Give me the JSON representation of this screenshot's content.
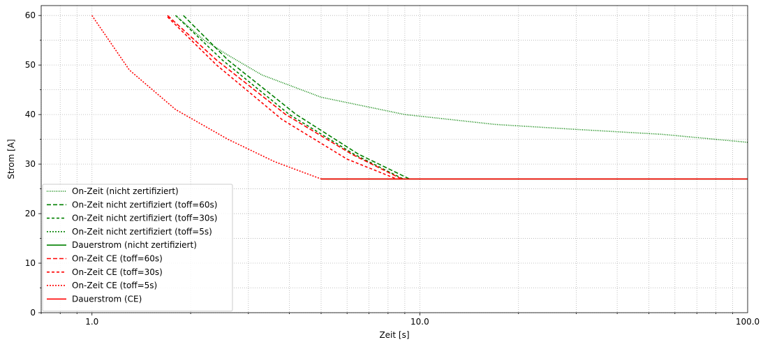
{
  "chart_data": {
    "type": "line",
    "xlabel": "Zeit [s]",
    "ylabel": "Strom [A]",
    "xscale": "log",
    "xlim": [
      0.7,
      100
    ],
    "ylim": [
      0,
      62
    ],
    "grid": true,
    "legend_position": "lower-left",
    "x_ticks": [
      {
        "value": 1,
        "label": "1.0"
      },
      {
        "value": 10,
        "label": "10.0"
      },
      {
        "value": 100,
        "label": "100.0"
      }
    ],
    "y_ticks": [
      {
        "value": 0,
        "label": "0"
      },
      {
        "value": 10,
        "label": "10"
      },
      {
        "value": 20,
        "label": "20"
      },
      {
        "value": 30,
        "label": "30"
      },
      {
        "value": 40,
        "label": "40"
      },
      {
        "value": 50,
        "label": "50"
      },
      {
        "value": 60,
        "label": "60"
      }
    ],
    "series": [
      {
        "name": "On-Zeit (nicht zertifiziert)",
        "color": "#008000",
        "dash": "dotted",
        "points": [
          [
            1.8,
            60
          ],
          [
            2.2,
            55
          ],
          [
            2.6,
            52
          ],
          [
            3.3,
            48
          ],
          [
            5.0,
            43.5
          ],
          [
            9.0,
            40
          ],
          [
            17,
            38
          ],
          [
            30,
            37
          ],
          [
            55,
            36
          ],
          [
            100,
            34.4
          ]
        ]
      },
      {
        "name": "On-Zeit nicht zertifiziert (toff=60s)",
        "color": "#008000",
        "dash": "dashed",
        "points": [
          [
            1.9,
            60
          ],
          [
            2.6,
            51
          ],
          [
            4.2,
            40
          ],
          [
            6.5,
            32
          ],
          [
            9.3,
            27
          ]
        ]
      },
      {
        "name": "On-Zeit nicht zertifiziert (toff=30s)",
        "color": "#008000",
        "dash": "shortdash",
        "points": [
          [
            1.8,
            60
          ],
          [
            2.5,
            51
          ],
          [
            4.0,
            40
          ],
          [
            6.3,
            32
          ],
          [
            8.9,
            27
          ]
        ]
      },
      {
        "name": "On-Zeit nicht zertifiziert (toff=5s)",
        "color": "#008000",
        "dash": "dotted2",
        "points": []
      },
      {
        "name": "Dauerstrom (nicht zertifiziert)",
        "color": "#008000",
        "dash": "solid",
        "points": [
          [
            5,
            27
          ],
          [
            100,
            27
          ]
        ]
      },
      {
        "name": "On-Zeit CE (toff=60s)",
        "color": "#ff0000",
        "dash": "dashed",
        "points": [
          [
            1.7,
            60
          ],
          [
            2.4,
            51
          ],
          [
            3.9,
            40
          ],
          [
            6.2,
            32
          ],
          [
            8.8,
            27
          ]
        ]
      },
      {
        "name": "On-Zeit CE (toff=30s)",
        "color": "#ff0000",
        "dash": "shortdash",
        "points": [
          [
            1.7,
            59.7
          ],
          [
            2.4,
            50
          ],
          [
            3.8,
            39
          ],
          [
            6.0,
            31
          ],
          [
            8.5,
            27
          ]
        ]
      },
      {
        "name": "On-Zeit CE (toff=5s)",
        "color": "#ff0000",
        "dash": "dotted2",
        "points": [
          [
            1.0,
            60
          ],
          [
            1.3,
            49
          ],
          [
            1.8,
            41
          ],
          [
            2.6,
            35
          ],
          [
            3.6,
            30.5
          ],
          [
            5.0,
            27
          ]
        ]
      },
      {
        "name": "Dauerstrom (CE)",
        "color": "#ff0000",
        "dash": "solid",
        "points": [
          [
            5,
            27
          ],
          [
            100,
            27
          ]
        ]
      }
    ]
  }
}
